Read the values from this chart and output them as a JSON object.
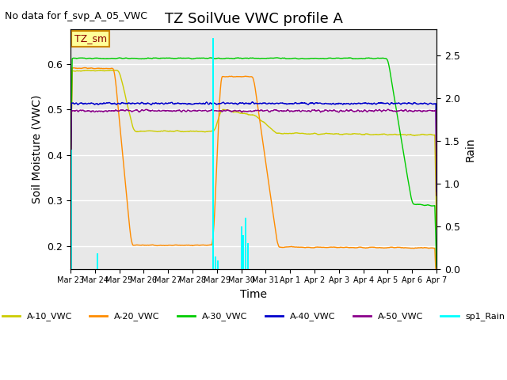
{
  "title": "TZ SoilVue VWC profile A",
  "no_data_text": "No data for f_svp_A_05_VWC",
  "annotation_text": "TZ_sm",
  "xlabel": "Time",
  "ylabel": "Soil Moisture (VWC)",
  "ylabel_right": "Rain",
  "ylim": [
    0.15,
    0.675
  ],
  "ylim_right": [
    0.0,
    2.8
  ],
  "background_color": "#e8e8e8",
  "colors": {
    "A10": "#cccc00",
    "A20": "#ff8c00",
    "A30": "#00cc00",
    "A40": "#0000cc",
    "A50": "#8b008b",
    "Rain": "#00ffff"
  },
  "legend_entries": [
    "A-10_VWC",
    "A-20_VWC",
    "A-30_VWC",
    "A-40_VWC",
    "A-50_VWC",
    "sp1_Rain"
  ],
  "x_tick_positions": [
    0,
    1,
    2,
    3,
    4,
    5,
    6,
    7,
    8,
    9,
    10,
    11,
    12,
    13,
    14,
    15
  ],
  "x_tick_labels": [
    "Mar 23",
    "Mar 24",
    "Mar 25",
    "Mar 26",
    "Mar 27",
    "Mar 28",
    "Mar 29",
    "Mar 30",
    "Mar 31",
    "Apr 1",
    "Apr 2",
    "Apr 3",
    "Apr 4",
    "Apr 5",
    "Apr 6",
    "Apr 7"
  ],
  "xlim": [
    0,
    15
  ],
  "num_days": 15,
  "rain_times": [
    0.05,
    1.1,
    5.85,
    5.95,
    6.05,
    7.0,
    7.08,
    7.18,
    7.28
  ],
  "rain_vals": [
    1.4,
    0.18,
    2.7,
    0.15,
    0.1,
    0.5,
    0.4,
    0.6,
    0.3
  ]
}
